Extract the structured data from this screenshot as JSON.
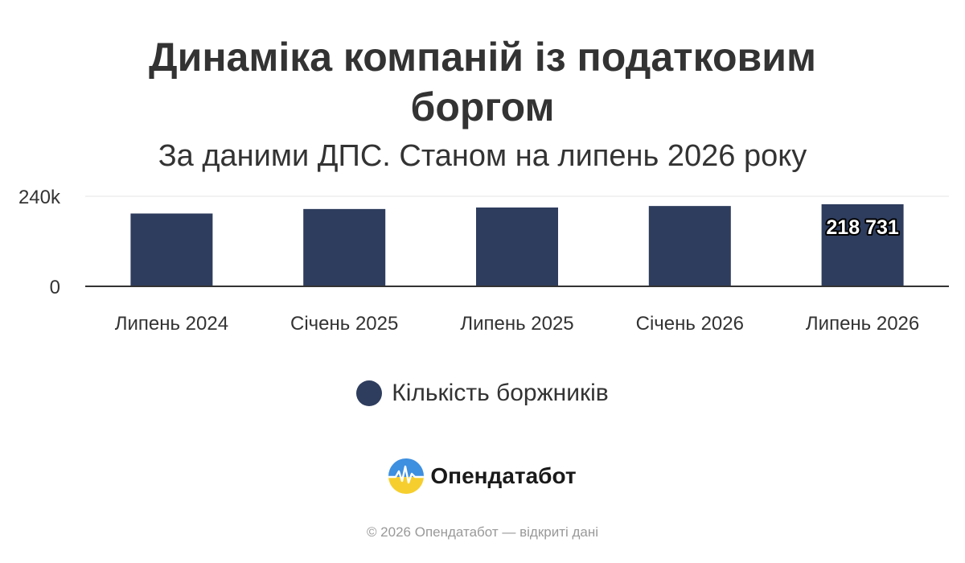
{
  "chart": {
    "title": "Динаміка компаній із податковим боргом",
    "subtitle": "За даними ДПС. Станом на липень 2026 року"
  },
  "chart_data": {
    "type": "bar",
    "categories": [
      "Липень 2024",
      "Січень 2025",
      "Липень 2025",
      "Січень 2026",
      "Липень 2026"
    ],
    "series": [
      {
        "name": "Кількість боржників",
        "values": [
          194000,
          206000,
          210000,
          214000,
          218731
        ],
        "color": "#2e3d5e"
      }
    ],
    "data_labels": [
      {
        "category": "Липень 2026",
        "text": "218 731"
      }
    ],
    "y_ticks": [
      {
        "value": 0,
        "label": "0"
      },
      {
        "value": 240000,
        "label": "240k"
      }
    ],
    "ylim": [
      0,
      240000
    ],
    "grid": true,
    "legend_position": "bottom"
  },
  "branding": {
    "logo_text": "Опендатабот",
    "logo_icon": "opendatabot-logo-icon",
    "footer": "© 2026 Опендатабот — відкриті дані"
  },
  "colors": {
    "bar": "#2e3d5e",
    "text": "#333333",
    "grid": "#e6e6e6",
    "axis": "#333333",
    "footer": "#999999"
  }
}
